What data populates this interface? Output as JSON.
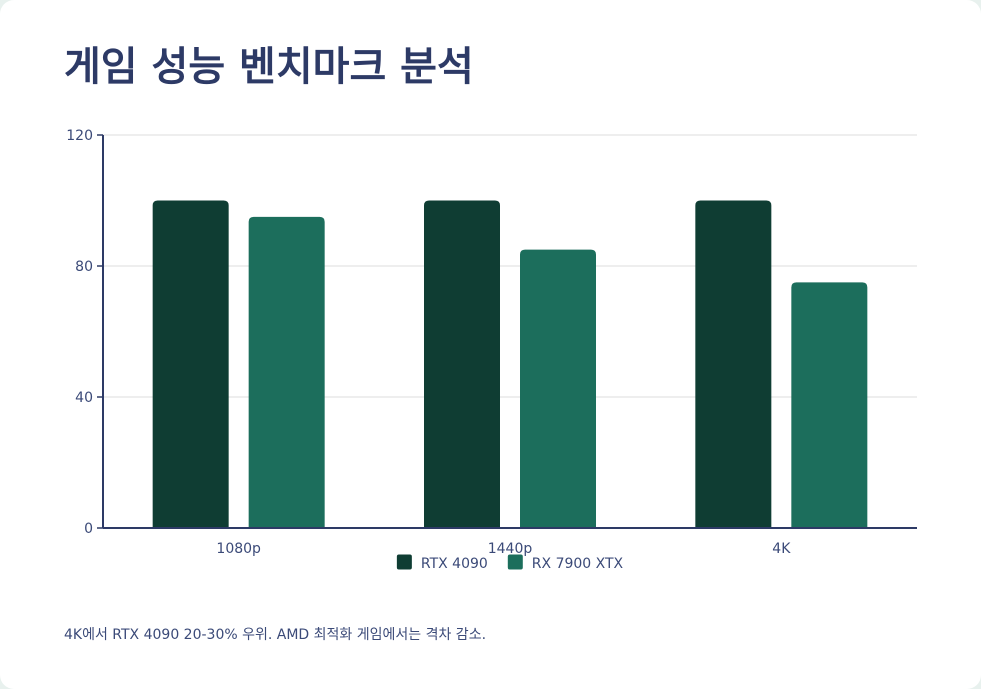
{
  "title": "게임 성능 벤치마크 분석",
  "note": "4K에서 RTX 4090 20-30% 우위. AMD 최적화 게임에서는 격차 감소.",
  "colors": {
    "background": "#ffffff",
    "title": "#2d3a66",
    "axis": "#2d3a66",
    "grid": "#dcdcdc",
    "text": "#3b4a78"
  },
  "chart_data": {
    "type": "bar",
    "title": "",
    "xlabel": "",
    "ylabel": "",
    "categories": [
      "1080p",
      "1440p",
      "4K"
    ],
    "series": [
      {
        "name": "RTX 4090",
        "color": "#0f3d33",
        "values": [
          100,
          100,
          100
        ]
      },
      {
        "name": "RX 7900 XTX",
        "color": "#1c6e5c",
        "values": [
          95,
          85,
          75
        ]
      }
    ],
    "ylim": [
      0,
      120
    ],
    "yticks": [
      0,
      40,
      80,
      120
    ],
    "ytick_labels": [
      "0",
      "40",
      "80",
      "120"
    ],
    "grid": true,
    "legend": "bottom-center"
  }
}
